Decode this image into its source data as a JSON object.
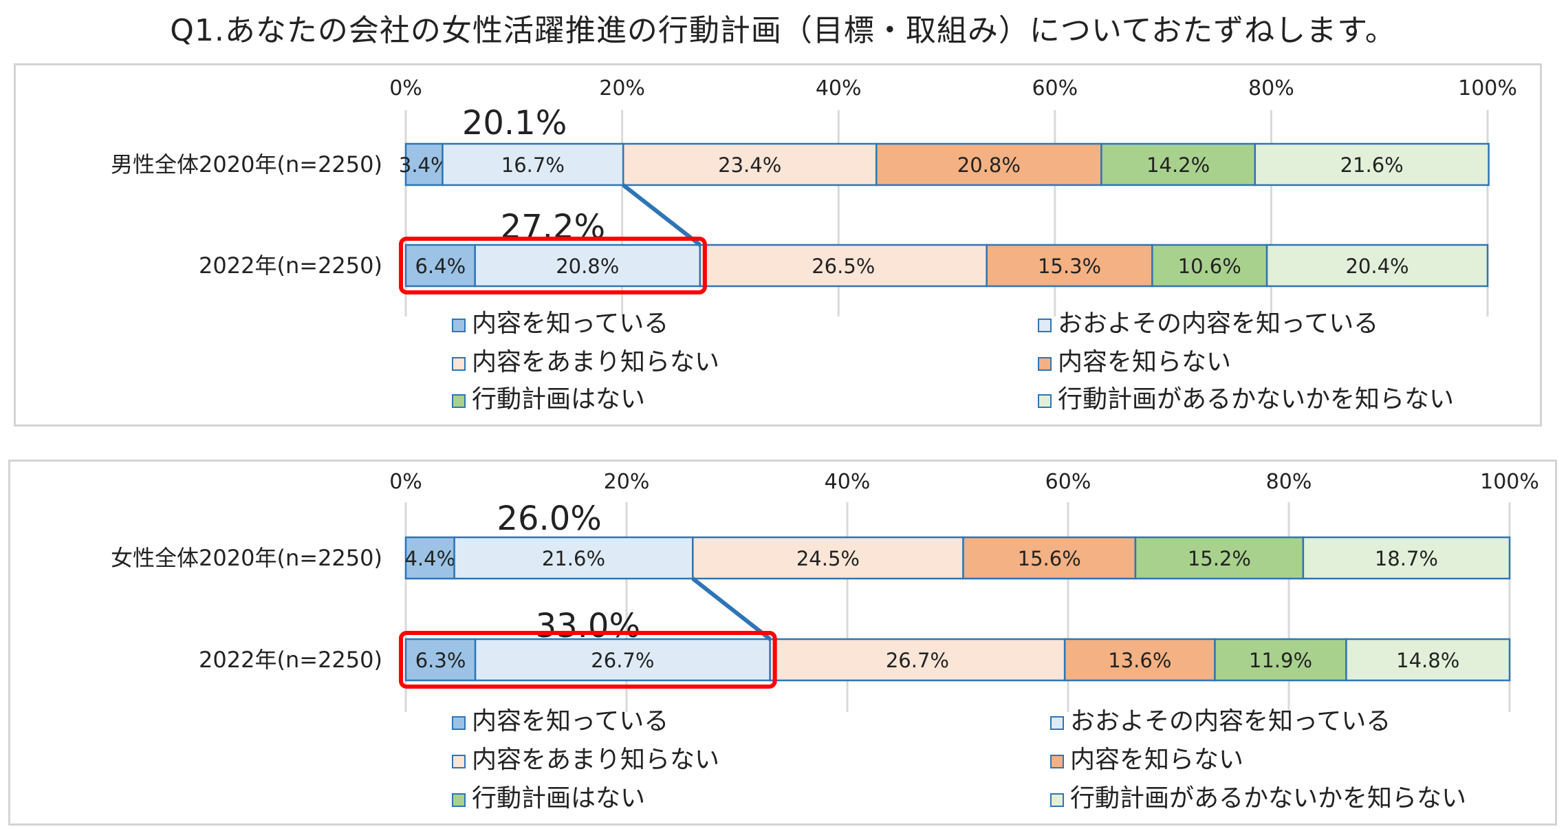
{
  "title": "Q1.あなたの会社の女性活躍推進の行動計画（目標・取組み）についておたずねします。",
  "colors": [
    "#9cc3e5",
    "#deebf7",
    "#fbe5d6",
    "#f4b183",
    "#a9d18e",
    "#e2f0d9"
  ],
  "border_color": "#2e75b6",
  "highlight_color": "#ff0000",
  "chart_data": [
    {
      "type": "bar",
      "orientation": "horizontal",
      "stacked": true,
      "xlim": [
        0,
        100
      ],
      "ticks": [
        "0%",
        "20%",
        "40%",
        "60%",
        "80%",
        "100%"
      ],
      "grid": true,
      "legend": "bottom",
      "categories": [
        "男性全体2020年(n=2250)",
        "2022年(n=2250)"
      ],
      "series": [
        {
          "name": "内容を知っている",
          "values": [
            3.4,
            6.4
          ]
        },
        {
          "name": "おおよその内容を知っている",
          "values": [
            16.7,
            20.8
          ]
        },
        {
          "name": "内容をあまり知らない",
          "values": [
            23.4,
            26.5
          ]
        },
        {
          "name": "内容を知らない",
          "values": [
            20.8,
            15.3
          ]
        },
        {
          "name": "行動計画はない",
          "values": [
            14.2,
            10.6
          ]
        },
        {
          "name": "行動計画があるかないかを知らない",
          "values": [
            21.6,
            20.4
          ]
        }
      ],
      "callouts": [
        "20.1%",
        "27.2%"
      ]
    },
    {
      "type": "bar",
      "orientation": "horizontal",
      "stacked": true,
      "xlim": [
        0,
        100
      ],
      "ticks": [
        "0%",
        "20%",
        "40%",
        "60%",
        "80%",
        "100%"
      ],
      "grid": true,
      "legend": "bottom",
      "categories": [
        "女性全体2020年(n=2250)",
        "2022年(n=2250)"
      ],
      "series": [
        {
          "name": "内容を知っている",
          "values": [
            4.4,
            6.3
          ]
        },
        {
          "name": "おおよその内容を知っている",
          "values": [
            21.6,
            26.7
          ]
        },
        {
          "name": "内容をあまり知らない",
          "values": [
            24.5,
            26.7
          ]
        },
        {
          "name": "内容を知らない",
          "values": [
            15.6,
            13.6
          ]
        },
        {
          "name": "行動計画はない",
          "values": [
            15.2,
            11.9
          ]
        },
        {
          "name": "行動計画があるかないかを知らない",
          "values": [
            18.7,
            14.8
          ]
        }
      ],
      "callouts": [
        "26.0%",
        "33.0%"
      ]
    }
  ]
}
